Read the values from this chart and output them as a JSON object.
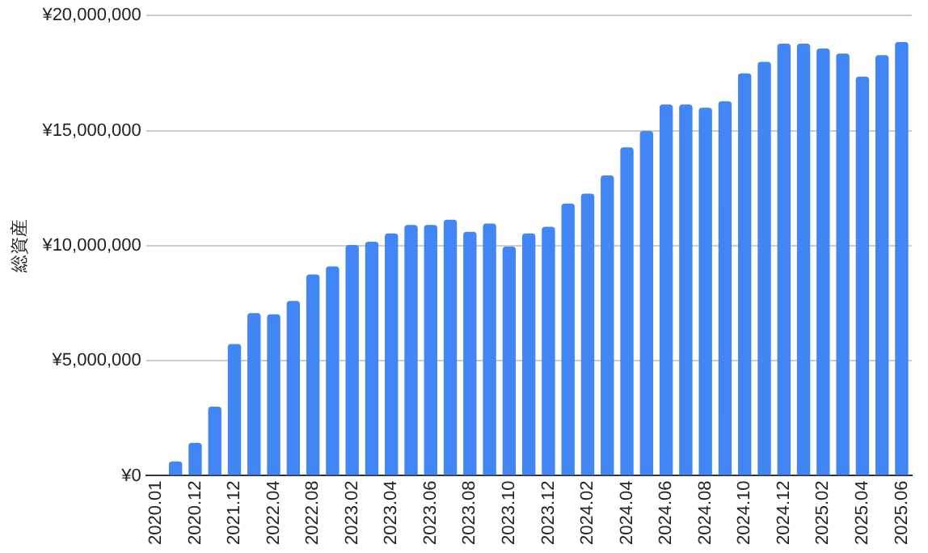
{
  "chart_data": {
    "type": "bar",
    "ylabel": "総資産",
    "categories": [
      "2020.01",
      null,
      "2020.12",
      null,
      "2021.12",
      null,
      "2022.04",
      null,
      "2022.08",
      null,
      "2023.02",
      null,
      "2023.04",
      null,
      "2023.06",
      null,
      "2023.08",
      null,
      "2023.10",
      null,
      "2023.12",
      null,
      "2024.02",
      null,
      "2024.04",
      null,
      "2024.06",
      null,
      "2024.08",
      null,
      "2024.10",
      null,
      "2024.12",
      null,
      "2025.02",
      null,
      "2025.04",
      null,
      "2025.06"
    ],
    "values": [
      0,
      620000,
      1430000,
      3000000,
      5730000,
      7070000,
      7020000,
      7600000,
      8750000,
      9100000,
      10030000,
      10170000,
      10530000,
      10900000,
      10900000,
      11130000,
      10600000,
      10960000,
      9960000,
      10530000,
      10820000,
      11830000,
      12260000,
      13050000,
      14270000,
      14980000,
      16130000,
      16130000,
      15990000,
      16270000,
      17490000,
      17990000,
      18780000,
      18780000,
      18570000,
      18350000,
      17350000,
      18280000,
      18850000
    ],
    "color": "#4285f4",
    "ylim": [
      0,
      20000000
    ],
    "yticks": [
      {
        "value": 0,
        "label": "¥0"
      },
      {
        "value": 5000000,
        "label": "¥5,000,000"
      },
      {
        "value": 10000000,
        "label": "¥10,000,000"
      },
      {
        "value": 15000000,
        "label": "¥15,000,000"
      },
      {
        "value": 20000000,
        "label": "¥20,000,000"
      }
    ],
    "grid": "y"
  }
}
